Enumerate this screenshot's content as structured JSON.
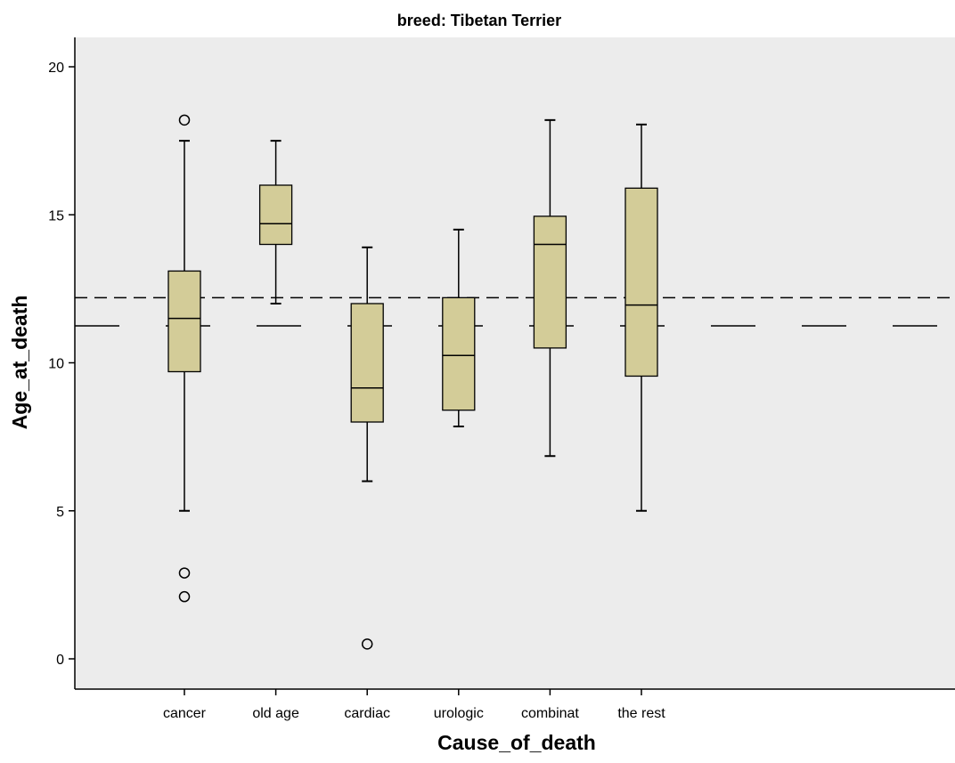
{
  "chart_data": {
    "type": "box",
    "title": "breed: Tibetan Terrier",
    "xlabel": "Cause_of_death",
    "ylabel": "Age_at_death",
    "ylim": [
      -1,
      21.2
    ],
    "yticks": [
      0,
      5,
      10,
      15,
      20
    ],
    "categories": [
      "cancer",
      "old age",
      "cardiac",
      "urologic",
      "combinat",
      "the rest"
    ],
    "boxes": [
      {
        "whisker_low": 5.0,
        "q1": 9.7,
        "median": 11.5,
        "q3": 13.1,
        "whisker_high": 17.5,
        "outliers": [
          18.2,
          2.9,
          2.1
        ]
      },
      {
        "whisker_low": 12.0,
        "q1": 14.0,
        "median": 14.7,
        "q3": 16.0,
        "whisker_high": 17.5,
        "outliers": []
      },
      {
        "whisker_low": 6.0,
        "q1": 8.0,
        "median": 9.15,
        "q3": 12.0,
        "whisker_high": 13.9,
        "outliers": [
          0.5
        ]
      },
      {
        "whisker_low": 7.85,
        "q1": 8.4,
        "median": 10.25,
        "q3": 12.2,
        "whisker_high": 14.5,
        "outliers": []
      },
      {
        "whisker_low": 6.85,
        "q1": 10.5,
        "median": 14.0,
        "q3": 14.95,
        "whisker_high": 18.2,
        "outliers": []
      },
      {
        "whisker_low": 5.0,
        "q1": 9.55,
        "median": 11.95,
        "q3": 15.9,
        "whisker_high": 18.05,
        "outliers": []
      }
    ],
    "reference_lines": [
      {
        "value": 12.2,
        "style": "short-dash"
      },
      {
        "value": 11.25,
        "style": "long-dash"
      }
    ],
    "box_color": "#d3cc98",
    "plot_background": "#ececec",
    "grid": false,
    "legend": "none"
  }
}
